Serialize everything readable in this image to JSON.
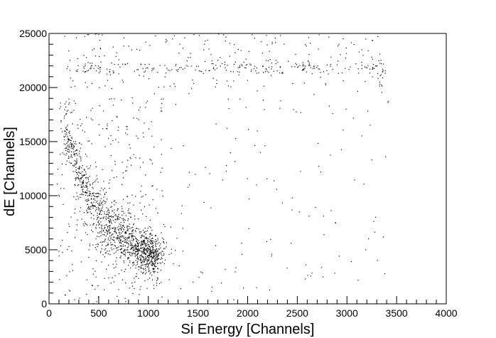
{
  "chart_data": {
    "type": "scatter",
    "title": "",
    "xlabel": "Si Energy [Channels]",
    "ylabel": "dE [Channels]",
    "xlim": [
      0,
      4000
    ],
    "ylim": [
      0,
      25000
    ],
    "x_ticks": [
      0,
      500,
      1000,
      1500,
      2000,
      2500,
      3000,
      3500,
      4000
    ],
    "y_ticks": [
      0,
      5000,
      10000,
      15000,
      20000,
      25000
    ],
    "x_tick_labels": [
      "0",
      "500",
      "1000",
      "1500",
      "2000",
      "2500",
      "3000",
      "3500",
      "4000"
    ],
    "y_tick_labels": [
      "0",
      "5000",
      "10000",
      "15000",
      "20000",
      "25000"
    ],
    "grid": false,
    "marker_color": "#000000",
    "series": [
      {
        "regions": [
          {
            "type": "band",
            "x_range": [
              150,
              1100
            ],
            "y_at_x": [
              [
                150,
                16500
              ],
              [
                300,
                12000
              ],
              [
                500,
                8500
              ],
              [
                700,
                6800
              ],
              [
                900,
                5200
              ],
              [
                1100,
                4200
              ]
            ],
            "y_spread": 1200,
            "count": 900
          },
          {
            "type": "cluster",
            "center": [
              1020,
              4600
            ],
            "spread": [
              80,
              800
            ],
            "count": 220
          },
          {
            "type": "cluster",
            "center": [
              800,
              5500
            ],
            "spread": [
              200,
              1100
            ],
            "count": 180
          },
          {
            "type": "band",
            "x_range": [
              120,
              3400
            ],
            "y_center": 21800,
            "y_spread": 300,
            "count": 190
          },
          {
            "type": "uniform",
            "x_range": [
              100,
              3400
            ],
            "y_range": [
              20000,
              25000
            ],
            "count": 170
          },
          {
            "type": "uniform",
            "x_range": [
              100,
              3400
            ],
            "y_range": [
              0,
              25000
            ],
            "count": 240
          },
          {
            "type": "uniform",
            "x_range": [
              80,
              1150
            ],
            "y_range": [
              0,
              19000
            ],
            "count": 260
          },
          {
            "type": "band",
            "x_range": [
              3250,
              3420
            ],
            "y_at_x": [
              [
                3250,
                22500
              ],
              [
                3420,
                18200
              ]
            ],
            "y_spread": 500,
            "count": 12
          }
        ],
        "seed": 7
      }
    ]
  }
}
